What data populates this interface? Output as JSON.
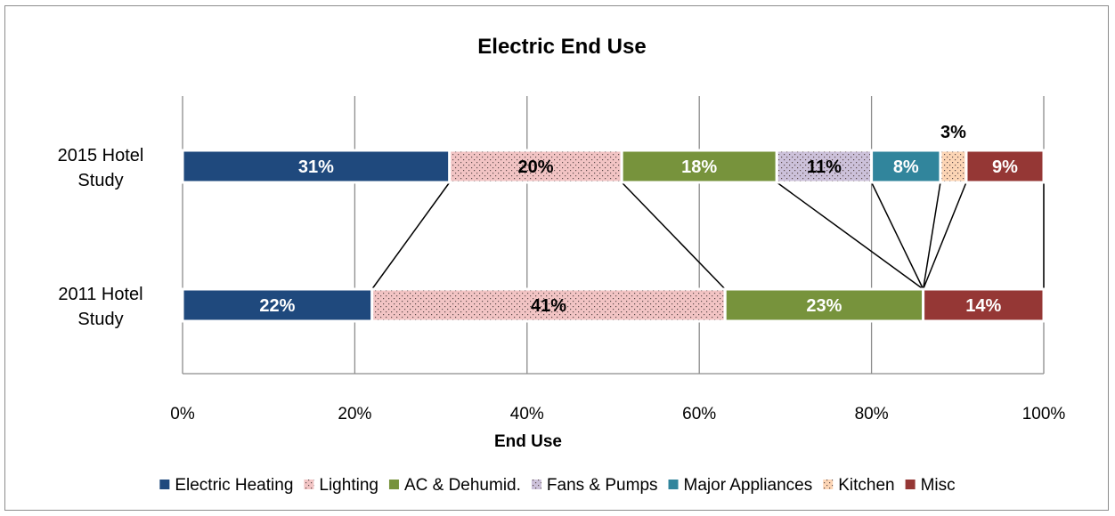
{
  "chart_data": {
    "type": "bar",
    "orientation": "horizontal",
    "stacked": "100%",
    "title": "Electric End Use",
    "xlabel": "End Use",
    "ylabel": "",
    "xlim": [
      0,
      100
    ],
    "xticks": [
      "0%",
      "20%",
      "40%",
      "60%",
      "80%",
      "100%"
    ],
    "grid": "vertical",
    "legend_position": "bottom",
    "categories": [
      [
        "2015 Hotel",
        "Study"
      ],
      [
        "2011 Hotel",
        "Study"
      ]
    ],
    "series": [
      {
        "name": "Electric Heating",
        "color": "#1f497d",
        "pattern": "solid",
        "values": [
          31,
          22
        ],
        "labels": [
          "31%",
          "22%"
        ],
        "label_color": "#ffffff"
      },
      {
        "name": "Lighting",
        "color": "#f2c4c4",
        "pattern": "dots",
        "values": [
          20,
          41
        ],
        "labels": [
          "20%",
          "41%"
        ],
        "label_color": "#000000"
      },
      {
        "name": "AC & Dehumid.",
        "color": "#77933c",
        "pattern": "solid",
        "values": [
          18,
          23
        ],
        "labels": [
          "18%",
          "23%"
        ],
        "label_color": "#ffffff"
      },
      {
        "name": "Fans & Pumps",
        "color": "#ccc1da",
        "pattern": "dots",
        "values": [
          11,
          0
        ],
        "labels": [
          "11%",
          ""
        ],
        "label_color": "#000000"
      },
      {
        "name": "Major Appliances",
        "color": "#31859c",
        "pattern": "solid",
        "values": [
          8,
          0
        ],
        "labels": [
          "8%",
          ""
        ],
        "label_color": "#ffffff"
      },
      {
        "name": "Kitchen",
        "color": "#fcd5b5",
        "pattern": "dots",
        "values": [
          3,
          0
        ],
        "labels": [
          "3%",
          ""
        ],
        "label_color": "#000000",
        "label_outside": true
      },
      {
        "name": "Misc",
        "color": "#953735",
        "pattern": "solid",
        "values": [
          9,
          14
        ],
        "labels": [
          "9%",
          "14%"
        ],
        "label_color": "#ffffff"
      }
    ],
    "series_lines": true
  }
}
